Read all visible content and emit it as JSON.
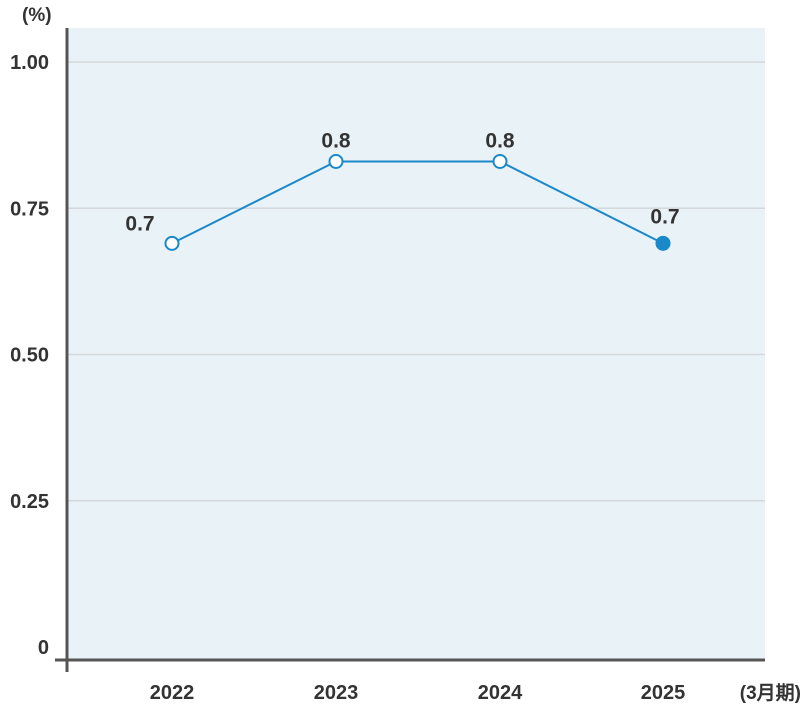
{
  "chart_data": {
    "type": "line",
    "y_unit": "(%)",
    "x_unit": "(3月期)",
    "categories": [
      "2022",
      "2023",
      "2024",
      "2025"
    ],
    "values": [
      0.69,
      0.83,
      0.83,
      0.69
    ],
    "value_labels": [
      "0.7",
      "0.8",
      "0.8",
      "0.7"
    ],
    "highlight_index": 3,
    "ylim": [
      0,
      1.05
    ],
    "yticks": [
      0,
      0.25,
      0.5,
      0.75,
      1.0
    ],
    "ytick_labels": [
      "0",
      "0.25",
      "0.50",
      "0.75",
      "1.00"
    ],
    "grid": true,
    "colors": {
      "plot_background": "#e9f2f6",
      "gridline": "#d4d8da",
      "axis": "#555555",
      "line": "#1a88c9",
      "marker_fill_open": "#ffffff",
      "marker_fill_highlight": "#1a88c9"
    }
  }
}
